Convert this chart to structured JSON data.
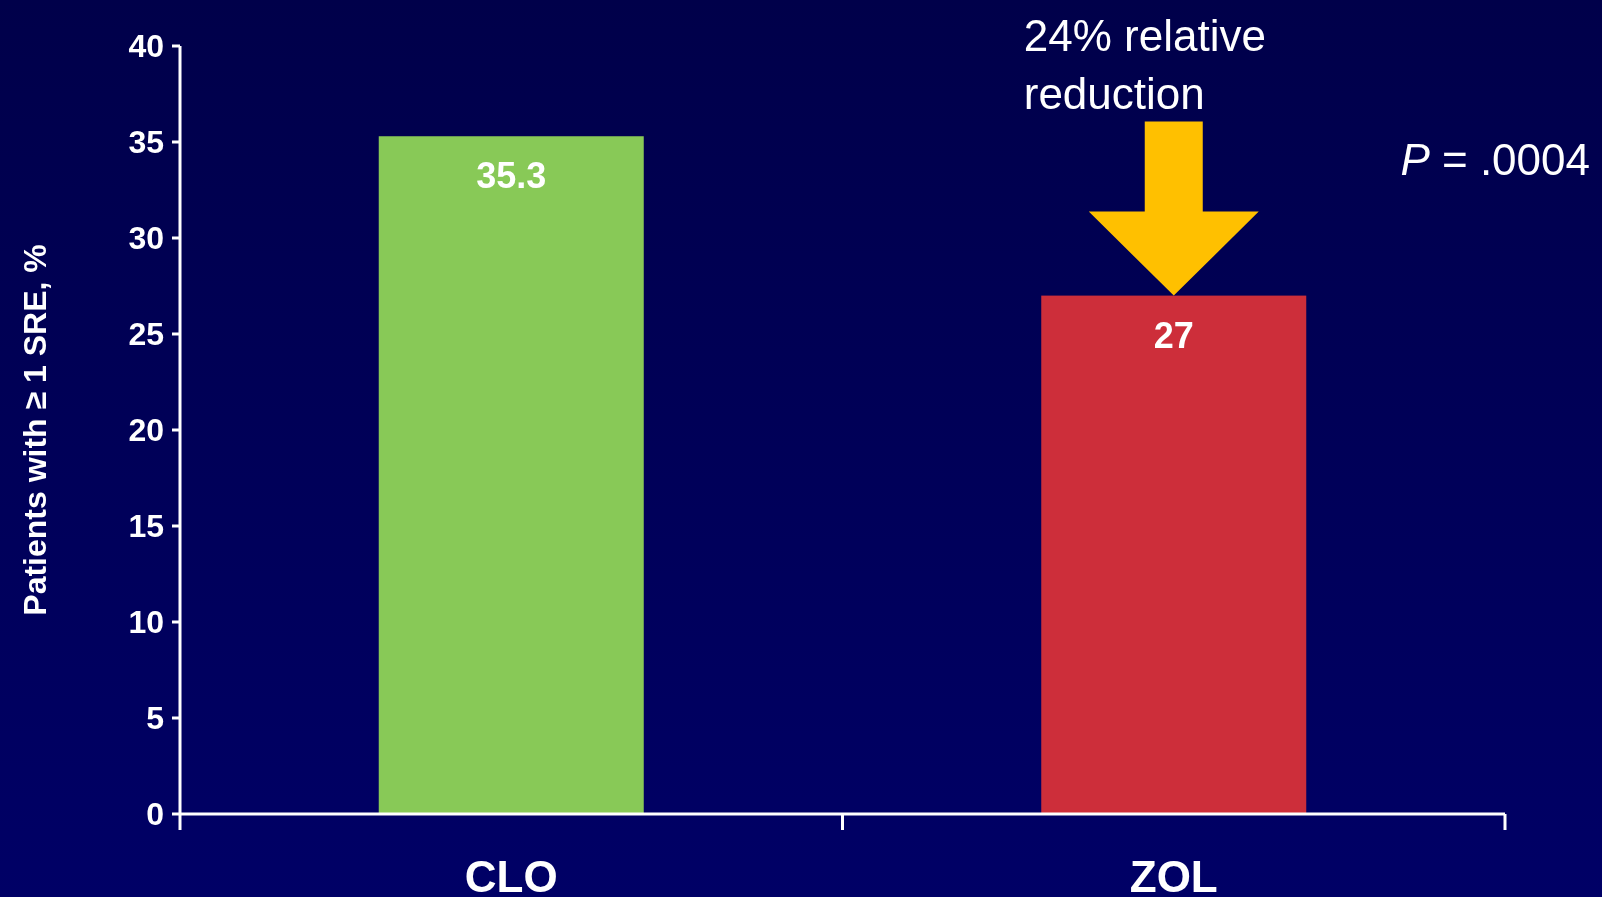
{
  "chart_data": {
    "type": "bar",
    "ylabel": "Patients with ≥ 1 SRE, %",
    "categories": [
      "CLO",
      "ZOL"
    ],
    "values": [
      35.3,
      27
    ],
    "colors": [
      "#88c957",
      "#cd2e3a"
    ],
    "ylim": [
      0,
      40
    ],
    "yticks": [
      0,
      5,
      10,
      15,
      20,
      25,
      30,
      35,
      40
    ],
    "data_labels": true,
    "grid": false,
    "annotations": [
      "24% relative reduction",
      "P = .0004"
    ]
  }
}
